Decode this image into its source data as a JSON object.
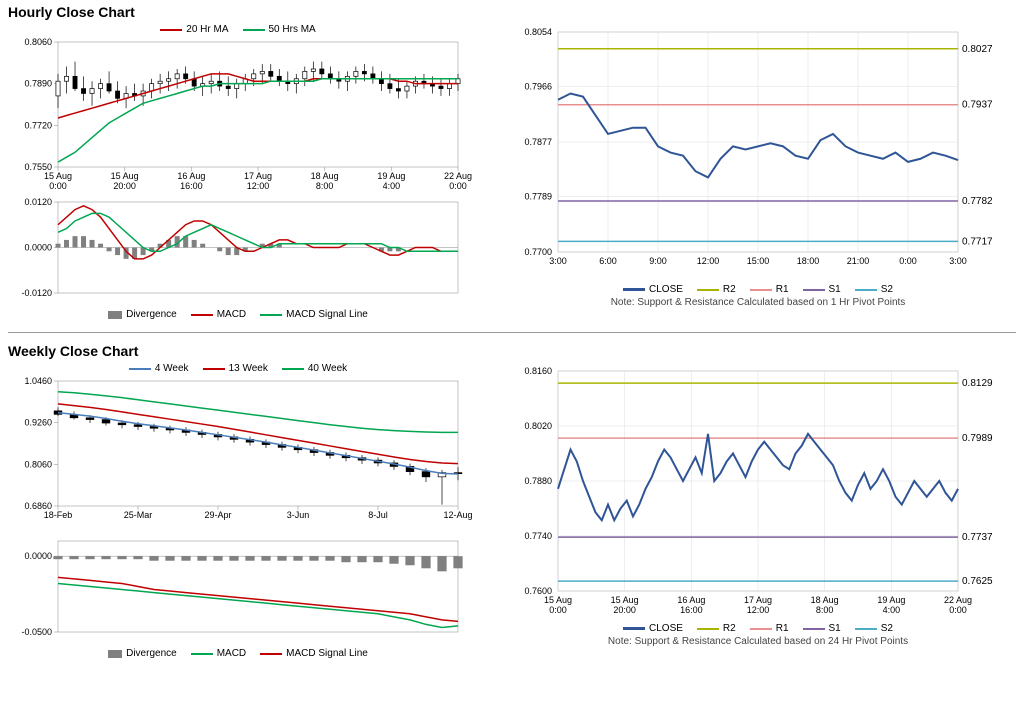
{
  "hourly": {
    "title": "Hourly Close Chart",
    "price": {
      "legend": {
        "ma20": "20 Hr MA",
        "ma50": "50 Hrs MA"
      },
      "ylim": [
        0.755,
        0.806
      ],
      "yticks": [
        0.755,
        0.772,
        0.789,
        0.806
      ],
      "xticks": [
        "15 Aug\n0:00",
        "15 Aug\n20:00",
        "16 Aug\n16:00",
        "17 Aug\n12:00",
        "18 Aug\n8:00",
        "19 Aug\n4:00",
        "22 Aug\n0:00"
      ],
      "ohlc": [
        [
          0.784,
          0.793,
          0.779,
          0.79
        ],
        [
          0.79,
          0.796,
          0.785,
          0.792
        ],
        [
          0.792,
          0.798,
          0.786,
          0.787
        ],
        [
          0.787,
          0.792,
          0.782,
          0.785
        ],
        [
          0.785,
          0.79,
          0.78,
          0.787
        ],
        [
          0.787,
          0.791,
          0.783,
          0.789
        ],
        [
          0.789,
          0.794,
          0.785,
          0.786
        ],
        [
          0.786,
          0.79,
          0.781,
          0.783
        ],
        [
          0.783,
          0.788,
          0.779,
          0.785
        ],
        [
          0.785,
          0.789,
          0.782,
          0.784
        ],
        [
          0.784,
          0.789,
          0.78,
          0.786
        ],
        [
          0.786,
          0.791,
          0.783,
          0.789
        ],
        [
          0.789,
          0.793,
          0.785,
          0.79
        ],
        [
          0.79,
          0.794,
          0.786,
          0.791
        ],
        [
          0.791,
          0.795,
          0.787,
          0.793
        ],
        [
          0.793,
          0.796,
          0.789,
          0.791
        ],
        [
          0.791,
          0.794,
          0.786,
          0.788
        ],
        [
          0.788,
          0.792,
          0.784,
          0.789
        ],
        [
          0.789,
          0.793,
          0.785,
          0.79
        ],
        [
          0.79,
          0.794,
          0.786,
          0.788
        ],
        [
          0.788,
          0.792,
          0.784,
          0.787
        ],
        [
          0.787,
          0.791,
          0.783,
          0.789
        ],
        [
          0.789,
          0.793,
          0.786,
          0.791
        ],
        [
          0.791,
          0.795,
          0.788,
          0.793
        ],
        [
          0.793,
          0.797,
          0.789,
          0.794
        ],
        [
          0.794,
          0.797,
          0.79,
          0.792
        ],
        [
          0.792,
          0.795,
          0.788,
          0.79
        ],
        [
          0.79,
          0.794,
          0.786,
          0.789
        ],
        [
          0.789,
          0.793,
          0.785,
          0.791
        ],
        [
          0.791,
          0.796,
          0.788,
          0.794
        ],
        [
          0.794,
          0.798,
          0.79,
          0.795
        ],
        [
          0.795,
          0.798,
          0.791,
          0.793
        ],
        [
          0.793,
          0.796,
          0.789,
          0.791
        ],
        [
          0.791,
          0.794,
          0.787,
          0.79
        ],
        [
          0.79,
          0.794,
          0.786,
          0.792
        ],
        [
          0.792,
          0.796,
          0.789,
          0.794
        ],
        [
          0.794,
          0.797,
          0.79,
          0.793
        ],
        [
          0.793,
          0.796,
          0.789,
          0.791
        ],
        [
          0.791,
          0.794,
          0.786,
          0.789
        ],
        [
          0.789,
          0.793,
          0.785,
          0.787
        ],
        [
          0.787,
          0.791,
          0.783,
          0.786
        ],
        [
          0.786,
          0.79,
          0.783,
          0.788
        ],
        [
          0.788,
          0.792,
          0.785,
          0.79
        ],
        [
          0.79,
          0.793,
          0.787,
          0.789
        ],
        [
          0.789,
          0.792,
          0.785,
          0.788
        ],
        [
          0.788,
          0.791,
          0.784,
          0.787
        ],
        [
          0.787,
          0.791,
          0.784,
          0.789
        ],
        [
          0.789,
          0.793,
          0.786,
          0.791
        ]
      ],
      "ma20": [
        0.775,
        0.776,
        0.777,
        0.778,
        0.779,
        0.78,
        0.781,
        0.782,
        0.783,
        0.784,
        0.785,
        0.786,
        0.787,
        0.788,
        0.789,
        0.79,
        0.791,
        0.792,
        0.793,
        0.793,
        0.793,
        0.792,
        0.791,
        0.79,
        0.79,
        0.79,
        0.79,
        0.79,
        0.79,
        0.79,
        0.791,
        0.791,
        0.791,
        0.791,
        0.791,
        0.791,
        0.791,
        0.791,
        0.791,
        0.791,
        0.79,
        0.79,
        0.789,
        0.789,
        0.789,
        0.789,
        0.789,
        0.789
      ],
      "ma50": [
        0.757,
        0.759,
        0.761,
        0.764,
        0.767,
        0.77,
        0.773,
        0.775,
        0.777,
        0.779,
        0.781,
        0.782,
        0.783,
        0.784,
        0.785,
        0.786,
        0.787,
        0.788,
        0.788,
        0.789,
        0.789,
        0.789,
        0.789,
        0.789,
        0.789,
        0.79,
        0.79,
        0.79,
        0.79,
        0.79,
        0.79,
        0.791,
        0.791,
        0.791,
        0.791,
        0.791,
        0.791,
        0.791,
        0.791,
        0.791,
        0.791,
        0.791,
        0.791,
        0.791,
        0.791,
        0.791,
        0.791,
        0.791
      ],
      "colors": {
        "ma20": "#c00000",
        "ma50": "#00a650",
        "ohlc": "#000000"
      }
    },
    "macd": {
      "legend": {
        "div": "Divergence",
        "macd": "MACD",
        "sig": "MACD Signal Line"
      },
      "ylim": [
        -0.012,
        0.012
      ],
      "yticks": [
        -0.012,
        0.0,
        0.012
      ],
      "div": [
        0.001,
        0.002,
        0.003,
        0.003,
        0.002,
        0.001,
        -0.001,
        -0.002,
        -0.003,
        -0.003,
        -0.002,
        -0.001,
        0.001,
        0.002,
        0.003,
        0.003,
        0.002,
        0.001,
        0.0,
        -0.001,
        -0.002,
        -0.002,
        -0.001,
        0.0,
        0.001,
        0.001,
        0.001,
        0.0,
        0.0,
        0.0,
        0.0,
        0.0,
        0.0,
        0.0,
        0.0,
        0.0,
        0.0,
        0.0,
        -0.001,
        -0.001,
        -0.001,
        0.0,
        0.0,
        0.0,
        0.0,
        0.0,
        0.0,
        0.0
      ],
      "macd": [
        0.006,
        0.008,
        0.01,
        0.011,
        0.01,
        0.008,
        0.005,
        0.002,
        -0.001,
        -0.003,
        -0.003,
        -0.002,
        0.0,
        0.002,
        0.004,
        0.006,
        0.007,
        0.007,
        0.006,
        0.004,
        0.002,
        0.0,
        -0.001,
        -0.001,
        0.0,
        0.001,
        0.002,
        0.002,
        0.001,
        0.001,
        0.0,
        0.0,
        0.0,
        0.0,
        0.001,
        0.001,
        0.001,
        0.0,
        -0.001,
        -0.002,
        -0.002,
        -0.001,
        0.0,
        0.0,
        0.0,
        -0.001,
        -0.001,
        -0.001
      ],
      "sig": [
        0.004,
        0.005,
        0.007,
        0.008,
        0.009,
        0.009,
        0.008,
        0.006,
        0.004,
        0.002,
        0.0,
        -0.001,
        -0.001,
        0.0,
        0.001,
        0.003,
        0.004,
        0.005,
        0.006,
        0.005,
        0.004,
        0.003,
        0.002,
        0.001,
        0.0,
        0.0,
        0.001,
        0.001,
        0.001,
        0.001,
        0.001,
        0.001,
        0.001,
        0.001,
        0.001,
        0.001,
        0.001,
        0.001,
        0.001,
        0.0,
        0.0,
        -0.001,
        -0.001,
        -0.001,
        -0.001,
        -0.001,
        -0.001,
        -0.001
      ],
      "colors": {
        "div": "#808080",
        "macd": "#c00000",
        "sig": "#00a650"
      }
    },
    "sr": {
      "ylim": [
        0.77,
        0.8054
      ],
      "yticks": [
        0.77,
        0.7789,
        0.7877,
        0.7966,
        0.8054
      ],
      "xticks": [
        "3:00",
        "6:00",
        "9:00",
        "12:00",
        "15:00",
        "18:00",
        "21:00",
        "0:00",
        "3:00"
      ],
      "close": [
        0.7945,
        0.7955,
        0.795,
        0.792,
        0.789,
        0.7895,
        0.79,
        0.79,
        0.787,
        0.786,
        0.7855,
        0.783,
        0.782,
        0.785,
        0.787,
        0.7865,
        0.787,
        0.7875,
        0.787,
        0.7855,
        0.785,
        0.788,
        0.789,
        0.787,
        0.786,
        0.7855,
        0.785,
        0.786,
        0.7845,
        0.785,
        0.786,
        0.7855,
        0.7848
      ],
      "levels": {
        "R2": 0.8027,
        "R1": 0.7937,
        "S1": 0.7782,
        "S2": 0.7717
      },
      "colors": {
        "close": "#2f5597",
        "R2": "#a8b400",
        "R1": "#e89090",
        "S1": "#8064a2",
        "S2": "#4bacc6"
      },
      "legend": {
        "close": "CLOSE",
        "R2": "R2",
        "R1": "R1",
        "S1": "S1",
        "S2": "S2"
      },
      "note": "Note: Support & Resistance Calculated based on 1 Hr Pivot Points"
    }
  },
  "weekly": {
    "title": "Weekly Close Chart",
    "price": {
      "legend": {
        "w4": "4 Week",
        "w13": "13 Week",
        "w40": "40 Week"
      },
      "ylim": [
        0.686,
        1.046
      ],
      "yticks": [
        0.686,
        0.806,
        0.926,
        1.046
      ],
      "xticks": [
        "18-Feb",
        "25-Mar",
        "29-Apr",
        "3-Jun",
        "8-Jul",
        "12-Aug"
      ],
      "ohlc": [
        [
          0.96,
          0.97,
          0.945,
          0.95
        ],
        [
          0.95,
          0.958,
          0.935,
          0.94
        ],
        [
          0.94,
          0.948,
          0.925,
          0.935
        ],
        [
          0.935,
          0.942,
          0.918,
          0.925
        ],
        [
          0.925,
          0.933,
          0.91,
          0.92
        ],
        [
          0.92,
          0.928,
          0.905,
          0.915
        ],
        [
          0.915,
          0.923,
          0.9,
          0.91
        ],
        [
          0.91,
          0.918,
          0.895,
          0.905
        ],
        [
          0.905,
          0.913,
          0.888,
          0.898
        ],
        [
          0.898,
          0.906,
          0.882,
          0.892
        ],
        [
          0.892,
          0.9,
          0.875,
          0.885
        ],
        [
          0.885,
          0.893,
          0.868,
          0.878
        ],
        [
          0.878,
          0.886,
          0.86,
          0.87
        ],
        [
          0.87,
          0.878,
          0.853,
          0.863
        ],
        [
          0.863,
          0.871,
          0.845,
          0.855
        ],
        [
          0.855,
          0.863,
          0.838,
          0.848
        ],
        [
          0.848,
          0.856,
          0.83,
          0.84
        ],
        [
          0.84,
          0.848,
          0.822,
          0.832
        ],
        [
          0.832,
          0.84,
          0.815,
          0.825
        ],
        [
          0.825,
          0.833,
          0.807,
          0.818
        ],
        [
          0.818,
          0.826,
          0.8,
          0.81
        ],
        [
          0.81,
          0.818,
          0.79,
          0.8
        ],
        [
          0.8,
          0.808,
          0.775,
          0.785
        ],
        [
          0.785,
          0.795,
          0.755,
          0.77
        ],
        [
          0.77,
          0.79,
          0.69,
          0.782
        ],
        [
          0.782,
          0.798,
          0.76,
          0.78
        ]
      ],
      "w4": [
        0.955,
        0.95,
        0.945,
        0.938,
        0.93,
        0.923,
        0.917,
        0.911,
        0.905,
        0.898,
        0.891,
        0.884,
        0.877,
        0.87,
        0.862,
        0.855,
        0.847,
        0.839,
        0.831,
        0.823,
        0.815,
        0.807,
        0.798,
        0.788,
        0.78,
        0.778
      ],
      "w13": [
        0.98,
        0.975,
        0.97,
        0.964,
        0.957,
        0.95,
        0.943,
        0.936,
        0.929,
        0.922,
        0.915,
        0.907,
        0.899,
        0.891,
        0.883,
        0.875,
        0.867,
        0.859,
        0.851,
        0.843,
        0.835,
        0.827,
        0.82,
        0.814,
        0.81,
        0.808
      ],
      "w40": [
        1.015,
        1.012,
        1.008,
        1.003,
        0.998,
        0.992,
        0.986,
        0.98,
        0.974,
        0.968,
        0.962,
        0.956,
        0.95,
        0.944,
        0.938,
        0.932,
        0.926,
        0.92,
        0.915,
        0.91,
        0.906,
        0.903,
        0.901,
        0.899,
        0.898,
        0.898
      ],
      "colors": {
        "w4": "#4a7ebb",
        "w13": "#c00000",
        "w40": "#00a650",
        "ohlc": "#000000"
      }
    },
    "macd": {
      "legend": {
        "div": "Divergence",
        "macd": "MACD",
        "sig": "MACD Signal Line"
      },
      "ylim": [
        -0.05,
        0.01
      ],
      "yticks": [
        -0.05,
        0.0
      ],
      "div": [
        -0.002,
        -0.002,
        -0.002,
        -0.002,
        -0.002,
        -0.002,
        -0.003,
        -0.003,
        -0.003,
        -0.003,
        -0.003,
        -0.003,
        -0.003,
        -0.003,
        -0.003,
        -0.003,
        -0.003,
        -0.003,
        -0.004,
        -0.004,
        -0.004,
        -0.005,
        -0.006,
        -0.008,
        -0.01,
        -0.008
      ],
      "macd": [
        -0.018,
        -0.019,
        -0.02,
        -0.021,
        -0.022,
        -0.023,
        -0.024,
        -0.025,
        -0.026,
        -0.027,
        -0.028,
        -0.029,
        -0.03,
        -0.031,
        -0.032,
        -0.033,
        -0.034,
        -0.035,
        -0.036,
        -0.037,
        -0.038,
        -0.04,
        -0.042,
        -0.045,
        -0.047,
        -0.046
      ],
      "sig": [
        -0.014,
        -0.015,
        -0.016,
        -0.017,
        -0.018,
        -0.02,
        -0.022,
        -0.023,
        -0.024,
        -0.025,
        -0.026,
        -0.027,
        -0.028,
        -0.029,
        -0.03,
        -0.031,
        -0.032,
        -0.033,
        -0.034,
        -0.035,
        -0.036,
        -0.037,
        -0.038,
        -0.04,
        -0.042,
        -0.043
      ],
      "colors": {
        "div": "#808080",
        "macd": "#00a650",
        "sig": "#c00000"
      }
    },
    "sr": {
      "ylim": [
        0.76,
        0.816
      ],
      "yticks": [
        0.76,
        0.774,
        0.788,
        0.802,
        0.816
      ],
      "xticks": [
        "15 Aug\n0:00",
        "15 Aug\n20:00",
        "16 Aug\n16:00",
        "17 Aug\n12:00",
        "18 Aug\n8:00",
        "19 Aug\n4:00",
        "22 Aug\n0:00"
      ],
      "close": [
        0.786,
        0.791,
        0.796,
        0.793,
        0.788,
        0.784,
        0.78,
        0.778,
        0.782,
        0.778,
        0.781,
        0.783,
        0.779,
        0.782,
        0.786,
        0.789,
        0.793,
        0.796,
        0.794,
        0.791,
        0.788,
        0.791,
        0.794,
        0.79,
        0.8,
        0.788,
        0.79,
        0.793,
        0.795,
        0.792,
        0.789,
        0.793,
        0.796,
        0.798,
        0.796,
        0.794,
        0.792,
        0.791,
        0.795,
        0.797,
        0.8,
        0.798,
        0.796,
        0.794,
        0.792,
        0.788,
        0.785,
        0.783,
        0.787,
        0.79,
        0.786,
        0.788,
        0.791,
        0.788,
        0.784,
        0.782,
        0.785,
        0.788,
        0.786,
        0.784,
        0.786,
        0.788,
        0.785,
        0.783,
        0.786
      ],
      "levels": {
        "R2": 0.8129,
        "R1": 0.7989,
        "S1": 0.7737,
        "S2": 0.7625
      },
      "colors": {
        "close": "#2f5597",
        "R2": "#a8b400",
        "R1": "#e89090",
        "S1": "#8064a2",
        "S2": "#4bacc6"
      },
      "legend": {
        "close": "CLOSE",
        "R2": "R2",
        "R1": "R1",
        "S1": "S1",
        "S2": "S2"
      },
      "note": "Note: Support & Resistance Calculated based on 24 Hr Pivot Points"
    }
  }
}
